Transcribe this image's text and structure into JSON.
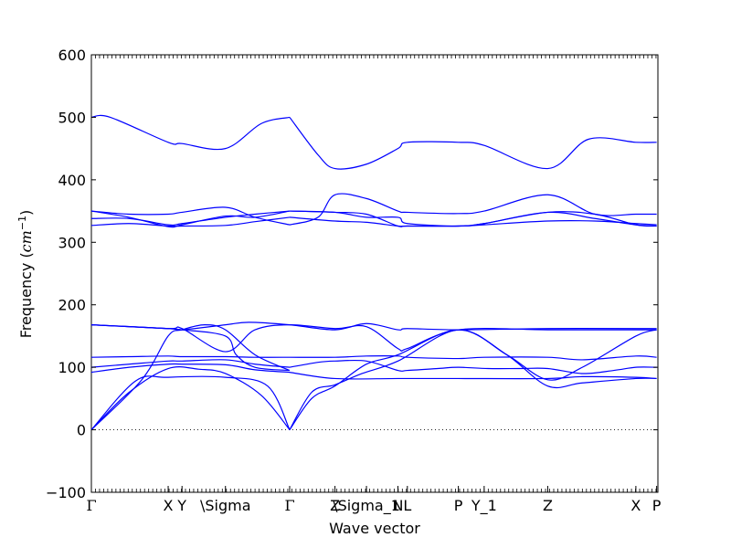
{
  "chart_data": {
    "type": "line",
    "xlabel": "Wave vector",
    "ylabel": "Frequency ($cm^{-1}$)",
    "ylabel_plain": "Frequency (",
    "ylabel_unit": "cm",
    "ylabel_exp": "−1",
    "ylabel_close": ")",
    "xlim": [
      0,
      9.0
    ],
    "ylim": [
      -100,
      600
    ],
    "yticks": [
      -100,
      0,
      100,
      200,
      300,
      400,
      500,
      600
    ],
    "ytick_labels": [
      "−100",
      "0",
      "100",
      "200",
      "300",
      "400",
      "500",
      "600"
    ],
    "zero_line": 0,
    "line_color": "#0000ff",
    "qpoints": [
      {
        "x": 0.0,
        "label": "Γ"
      },
      {
        "x": 1.22,
        "label": "X"
      },
      {
        "x": 1.44,
        "label": "Y"
      },
      {
        "x": 2.13,
        "label": "\\Sigma"
      },
      {
        "x": 3.15,
        "label": "Γ"
      },
      {
        "x": 3.87,
        "label": "Z"
      },
      {
        "x": 4.37,
        "label": "\\Sigma_1"
      },
      {
        "x": 4.87,
        "label": "N"
      },
      {
        "x": 5.02,
        "label": "L"
      },
      {
        "x": 5.83,
        "label": "P"
      },
      {
        "x": 6.24,
        "label": "Y_1"
      },
      {
        "x": 7.25,
        "label": "Z"
      },
      {
        "x": 8.65,
        "label": "X"
      },
      {
        "x": 8.98,
        "label": "P"
      }
    ],
    "series": [
      {
        "x": [
          0,
          0.6,
          1.22,
          1.7,
          2.13,
          2.7,
          3.15
        ],
        "y": [
          0,
          60,
          98,
          97,
          90,
          55,
          0
        ]
      },
      {
        "x": [
          0,
          0.7,
          1.22,
          2.13,
          2.8,
          3.15
        ],
        "y": [
          0,
          78,
          84,
          84,
          70,
          0
        ]
      },
      {
        "x": [
          3.15,
          3.5,
          3.87,
          4.37,
          4.87,
          5.83,
          6.6,
          7.25,
          7.8,
          8.65,
          8.98
        ],
        "y": [
          0,
          50,
          70,
          105,
          120,
          160,
          120,
          70,
          75,
          82,
          82
        ]
      },
      {
        "x": [
          3.15,
          3.5,
          3.87,
          4.3,
          4.87,
          5.83,
          6.6,
          7.25,
          7.8,
          8.65,
          8.98
        ],
        "y": [
          0,
          60,
          72,
          90,
          110,
          160,
          120,
          80,
          100,
          150,
          160
        ]
      },
      {
        "x": [
          0,
          0.6,
          1.22,
          1.44,
          2.13,
          2.6,
          3.15
        ],
        "y": [
          92,
          100,
          105,
          105,
          104,
          96,
          92
        ]
      },
      {
        "x": [
          3.15,
          3.87,
          4.87,
          5.83,
          7.25,
          7.8,
          8.65,
          8.98
        ],
        "y": [
          92,
          82,
          82,
          82,
          82,
          85,
          84,
          82
        ]
      },
      {
        "x": [
          0,
          0.6,
          1.22,
          1.44,
          2.13,
          2.6,
          3.15
        ],
        "y": [
          100,
          105,
          110,
          110,
          112,
          105,
          100
        ]
      },
      {
        "x": [
          3.15,
          3.6,
          3.87,
          4.37,
          4.87,
          5.02,
          5.5,
          5.83,
          6.3,
          6.8,
          7.25,
          7.8,
          8.3,
          8.65,
          8.98
        ],
        "y": [
          100,
          108,
          110,
          110,
          95,
          95,
          98,
          100,
          98,
          98,
          98,
          90,
          95,
          100,
          100
        ]
      },
      {
        "x": [
          0,
          0.6,
          1.22,
          1.44,
          2.13,
          2.6,
          3.15
        ],
        "y": [
          116,
          117,
          118,
          117,
          117,
          116,
          116
        ]
      },
      {
        "x": [
          3.15,
          3.87,
          4.37,
          4.87,
          5.02,
          5.83,
          6.24,
          7.25,
          7.8,
          8.65,
          8.98
        ],
        "y": [
          116,
          116,
          118,
          118,
          116,
          114,
          116,
          116,
          112,
          118,
          116
        ]
      },
      {
        "x": [
          0,
          0.8,
          1.22,
          1.44,
          1.8,
          2.13,
          2.6,
          3.15
        ],
        "y": [
          0,
          80,
          150,
          160,
          168,
          160,
          120,
          95
        ]
      },
      {
        "x": [
          0,
          0.6,
          1.22,
          1.44,
          2.13,
          2.3,
          2.6,
          3.15
        ],
        "y": [
          168,
          165,
          162,
          160,
          150,
          120,
          100,
          95
        ]
      },
      {
        "x": [
          0,
          1.22,
          1.44,
          2.13,
          2.5,
          3.15,
          3.87,
          4.37,
          4.87,
          5.02,
          5.83,
          7.25,
          8.65,
          8.98
        ],
        "y": [
          168,
          162,
          160,
          168,
          172,
          168,
          160,
          170,
          160,
          162,
          160,
          162,
          162,
          162
        ]
      },
      {
        "x": [
          0,
          1.22,
          1.44,
          2.13,
          2.6,
          3.15,
          3.87,
          4.37,
          4.87,
          5.02,
          5.83,
          7.25,
          8.65,
          8.98
        ],
        "y": [
          168,
          162,
          162,
          125,
          160,
          168,
          162,
          165,
          130,
          130,
          160,
          160,
          160,
          160
        ]
      },
      {
        "x": [
          0,
          0.6,
          1.22,
          1.44,
          2.13,
          2.6,
          3.15
        ],
        "y": [
          327,
          330,
          326,
          326,
          327,
          333,
          340
        ]
      },
      {
        "x": [
          3.15,
          3.87,
          4.37,
          4.87,
          5.02,
          5.83,
          6.24,
          7.25,
          8.0,
          8.65,
          8.98
        ],
        "y": [
          340,
          334,
          332,
          326,
          326,
          326,
          328,
          334,
          334,
          330,
          328
        ]
      },
      {
        "x": [
          0,
          0.6,
          1.22,
          1.44,
          2.13,
          2.6,
          3.15
        ],
        "y": [
          338,
          338,
          328,
          330,
          340,
          345,
          350
        ]
      },
      {
        "x": [
          3.15,
          3.87,
          4.37,
          4.87,
          5.02,
          5.83,
          6.24,
          7.25,
          8.0,
          8.65,
          8.98
        ],
        "y": [
          350,
          348,
          345,
          326,
          326,
          326,
          330,
          348,
          338,
          328,
          326
        ]
      },
      {
        "x": [
          0,
          0.6,
          1.22,
          1.44,
          2.13,
          2.6,
          3.15
        ],
        "y": [
          350,
          340,
          325,
          328,
          342,
          340,
          350
        ]
      },
      {
        "x": [
          3.15,
          3.87,
          4.37,
          4.87,
          5.02,
          5.83,
          6.24,
          7.25,
          8.0,
          8.65,
          8.98
        ],
        "y": [
          350,
          348,
          340,
          340,
          330,
          326,
          330,
          348,
          345,
          328,
          326
        ]
      },
      {
        "x": [
          0,
          0.6,
          1.22,
          1.44,
          2.13,
          2.6,
          3.15
        ],
        "y": [
          350,
          345,
          345,
          348,
          356,
          340,
          328
        ]
      },
      {
        "x": [
          3.15,
          3.6,
          3.87,
          4.37,
          4.87,
          5.02,
          5.83,
          6.24,
          7.25,
          8.0,
          8.65,
          8.98
        ],
        "y": [
          328,
          340,
          376,
          370,
          350,
          348,
          346,
          350,
          376,
          345,
          345,
          345
        ]
      },
      {
        "x": [
          0,
          0.3,
          1.22,
          1.44,
          2.13,
          2.7,
          3.15
        ],
        "y": [
          500,
          500,
          460,
          458,
          450,
          490,
          500
        ]
      },
      {
        "x": [
          3.15,
          3.6,
          3.87,
          4.37,
          4.87,
          5.02,
          5.83,
          6.24,
          7.25,
          7.9,
          8.65,
          8.98
        ],
        "y": [
          500,
          440,
          418,
          425,
          450,
          460,
          460,
          455,
          418,
          465,
          460,
          460
        ]
      }
    ]
  }
}
